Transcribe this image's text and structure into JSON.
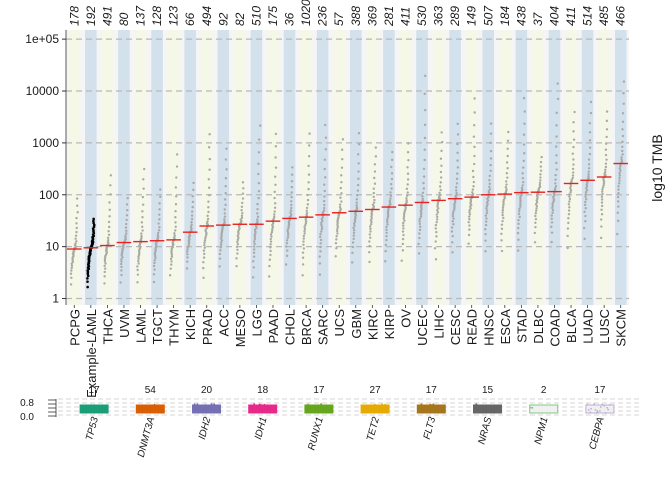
{
  "chart_data": [
    {
      "type": "scatter",
      "title": "",
      "ylabel": "log10 TMB",
      "xlabel": "",
      "yscale": "log10",
      "ylim": [
        0.75,
        150000
      ],
      "y_ticks": [
        1,
        10,
        100,
        1000,
        10000,
        100000
      ],
      "y_tick_labels": [
        "1",
        "10",
        "100",
        "1000",
        "10000",
        "1e+05"
      ],
      "grid": "horizontal dashed",
      "highlight_cohort": "Example-LAML",
      "categories": [
        "PCPG",
        "Example-LAML",
        "THCA",
        "UVM",
        "LAML",
        "TGCT",
        "THYM",
        "KICH",
        "PRAD",
        "ACC",
        "MESO",
        "LGG",
        "PAAD",
        "CHOL",
        "BRCA",
        "SARC",
        "UCS",
        "GBM",
        "KIRC",
        "KIRP",
        "OV",
        "UCEC",
        "LIHC",
        "CESC",
        "READ",
        "HNSC",
        "ESCA",
        "STAD",
        "DLBC",
        "COAD",
        "BLCA",
        "LUAD",
        "LUSC",
        "SKCM"
      ],
      "sample_sizes": [
        178,
        192,
        491,
        80,
        137,
        128,
        123,
        66,
        494,
        92,
        82,
        510,
        175,
        36,
        1020,
        236,
        57,
        388,
        369,
        281,
        411,
        530,
        363,
        289,
        149,
        507,
        184,
        438,
        37,
        404,
        411,
        514,
        485,
        466
      ],
      "median_tmb": [
        9,
        9.5,
        10.5,
        12,
        12.5,
        13,
        13.5,
        19,
        25,
        26,
        27,
        27,
        31,
        35,
        37,
        41,
        45,
        48,
        52,
        58,
        63,
        71,
        78,
        84,
        90,
        100,
        103,
        110,
        112,
        115,
        165,
        190,
        220,
        400
      ],
      "min_tmb": [
        1,
        1,
        1,
        1,
        1,
        1,
        1.5,
        2,
        1,
        2,
        2,
        1,
        1,
        2,
        1,
        1,
        3,
        2,
        2,
        2,
        2,
        3,
        2,
        3,
        5,
        3,
        3,
        3,
        5,
        5,
        3,
        5,
        5,
        5
      ],
      "max_tmb": [
        100,
        36,
        300,
        100,
        400,
        150,
        800,
        200,
        2000,
        1000,
        200,
        3000,
        2000,
        400,
        2000,
        3000,
        1500,
        2000,
        1000,
        800,
        1200,
        30000,
        2000,
        3000,
        10000,
        3000,
        2000,
        10000,
        600,
        20000,
        5000,
        8000,
        5000,
        20000
      ]
    },
    {
      "type": "bar",
      "title": "",
      "ylabel": "",
      "y_tick_labels": [
        "0.8",
        "0.0"
      ],
      "ylim": [
        0,
        1
      ],
      "categories": [
        "TP53",
        "DNMT3A",
        "IDH2",
        "IDH1",
        "RUNX1",
        "TET2",
        "FLT3",
        "NRAS",
        "NPM1",
        "CEBPA"
      ],
      "counts": [
        17,
        54,
        20,
        18,
        17,
        27,
        17,
        15,
        2,
        17
      ],
      "count_labels": [
        "17",
        "54",
        "20",
        "18",
        "17",
        "27",
        "17",
        "15",
        "2",
        "17"
      ],
      "colors": [
        "#1B9E77",
        "#D95F02",
        "#7570B3",
        "#E7298A",
        "#66A61E",
        "#E6AB02",
        "#A6761D",
        "#666666",
        "#7FC97F",
        "#BEAED4"
      ]
    }
  ]
}
